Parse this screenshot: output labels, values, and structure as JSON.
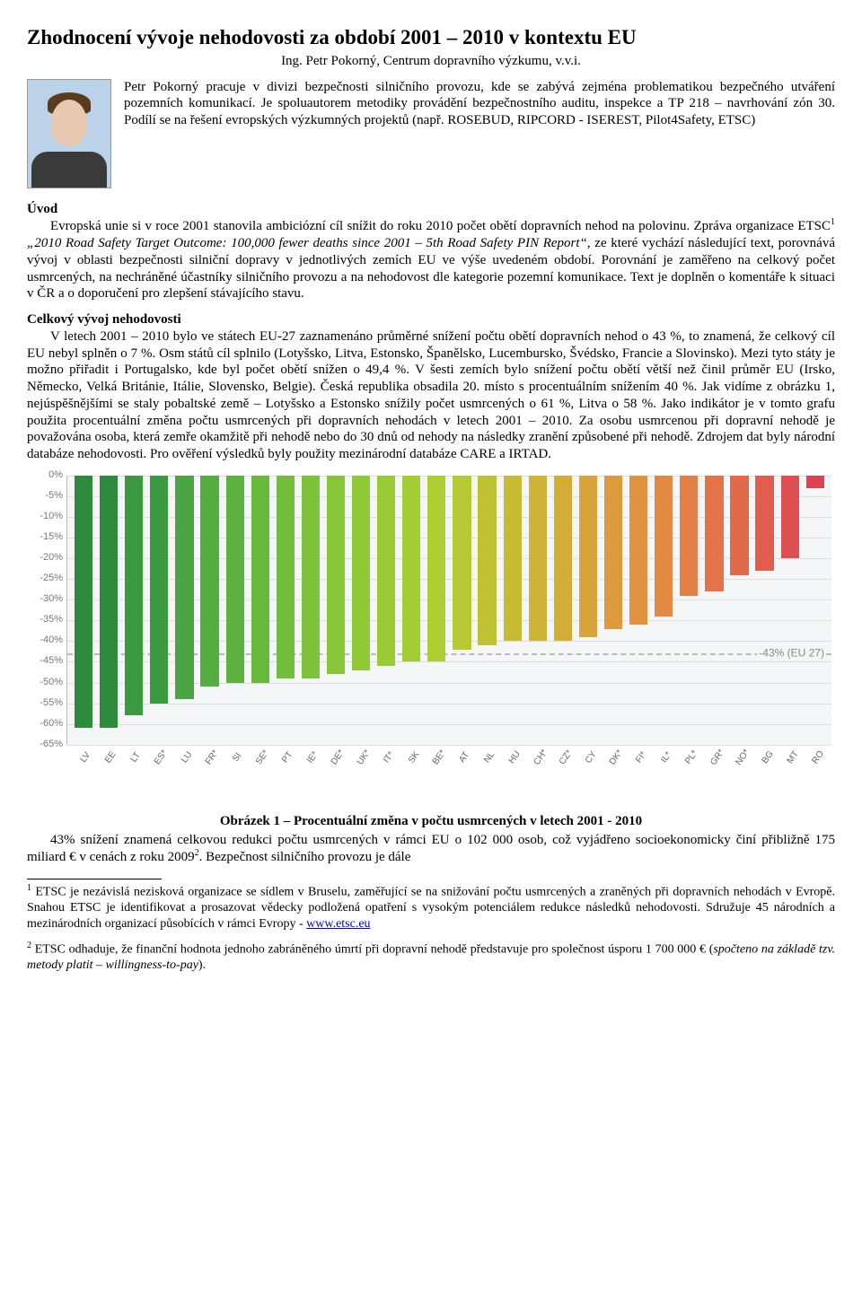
{
  "title": "Zhodnocení vývoje nehodovosti za období 2001 – 2010 v kontextu EU",
  "subtitle": "Ing. Petr Pokorný, Centrum dopravního výzkumu, v.v.i.",
  "bio": "Petr Pokorný pracuje v divizi bezpečnosti silničního provozu, kde se zabývá zejména problematikou bezpečného utváření pozemních komunikací. Je spoluautorem metodiky provádění bezpečnostního auditu, inspekce a TP 218 – navrhování zón 30. Podílí se na řešení evropských výzkumných projektů (např. ROSEBUD, RIPCORD - ISEREST, Pilot4Safety, ETSC)",
  "introHeading": "Úvod",
  "introPart1": "Evropská unie si v roce 2001 stanovila ambiciózní cíl snížit do roku 2010 počet obětí dopravních nehod na polovinu. Zpráva organizace ETSC",
  "introSup1": "1",
  "introItalic": " „2010 Road Safety Target Outcome: 100,000 fewer deaths since 2001 – 5th Road Safety PIN Report“",
  "introPart2": ", ze které vychází následující text, porovnává vývoj v oblasti bezpečnosti silniční dopravy v jednotlivých zemích EU ve výše uvedeném období. Porovnání je zaměřeno na celkový počet usmrcených, na nechráněné účastníky silničního provozu a na nehodovost dle kategorie pozemní komunikace. Text je doplněn o komentáře k situaci v ČR a o doporučení pro zlepšení stávajícího stavu.",
  "sec2Heading": "Celkový vývoj nehodovosti",
  "sec2Body": "V letech 2001 – 2010 bylo ve státech EU-27 zaznamenáno průměrné snížení počtu obětí dopravních nehod o 43 %, to znamená, že celkový cíl EU nebyl splněn o 7 %. Osm států cíl splnilo (Lotyšsko, Litva, Estonsko, Španělsko, Lucembursko, Švédsko, Francie a Slovinsko). Mezi tyto státy je možno přiřadit i Portugalsko, kde byl počet obětí snížen o 49,4 %. V šesti zemích bylo snížení počtu obětí větší než činil průměr EU (Irsko, Německo, Velká Británie, Itálie, Slovensko, Belgie). Česká republika obsadila 20. místo s procentuálním snížením 40 %. Jak vidíme z obrázku 1, nejúspěšnějšími se staly pobaltské země – Lotyšsko a Estonsko snížily počet usmrcených o 61 %, Litva o 58 %. Jako indikátor je v tomto grafu použita procentuální změna počtu usmrcených při dopravních nehodách v letech 2001 – 2010. Za osobu usmrcenou při dopravní nehodě je považována osoba, která zemře okamžitě při nehodě nebo do 30 dnů od nehody na následky zranění způsobené při nehodě. Zdrojem dat byly národní databáze nehodovosti. Pro ověření výsledků byly použity mezinárodní databáze CARE a IRTAD.",
  "chart": {
    "type": "bar",
    "ylim": [
      -65,
      0
    ],
    "ytick_step": 5,
    "ytick_suffix": "%",
    "background": "#f5f6f7",
    "grid_color": "#dddddd",
    "ref_line": {
      "value": -43,
      "label": "-43% (EU 27)",
      "color": "#bbbbbb"
    },
    "bar_width": 0.72,
    "label_fontsize": 11,
    "bars": [
      {
        "label": "LV",
        "value": -61,
        "color": "#2e8b3d"
      },
      {
        "label": "EE",
        "value": -61,
        "color": "#2e8b3d"
      },
      {
        "label": "LT",
        "value": -58,
        "color": "#3b9a41"
      },
      {
        "label": "ES*",
        "value": -55,
        "color": "#3b9a41"
      },
      {
        "label": "LU",
        "value": -54,
        "color": "#4aa542"
      },
      {
        "label": "FR*",
        "value": -51,
        "color": "#55ad41"
      },
      {
        "label": "SI",
        "value": -50,
        "color": "#5eb340"
      },
      {
        "label": "SE*",
        "value": -50,
        "color": "#68b93e"
      },
      {
        "label": "PT",
        "value": -49,
        "color": "#72be3c"
      },
      {
        "label": "IE*",
        "value": -49,
        "color": "#7cc23a"
      },
      {
        "label": "DE*",
        "value": -48,
        "color": "#86c638"
      },
      {
        "label": "UK*",
        "value": -47,
        "color": "#90c936"
      },
      {
        "label": "IT*",
        "value": -46,
        "color": "#9acb34"
      },
      {
        "label": "SK",
        "value": -45,
        "color": "#a4cd33"
      },
      {
        "label": "BE*",
        "value": -45,
        "color": "#adce33"
      },
      {
        "label": "AT",
        "value": -42,
        "color": "#b6c833"
      },
      {
        "label": "NL",
        "value": -41,
        "color": "#bfc233"
      },
      {
        "label": "HU",
        "value": -40,
        "color": "#c7bb34"
      },
      {
        "label": "CH*",
        "value": -40,
        "color": "#ceb436"
      },
      {
        "label": "CZ*",
        "value": -40,
        "color": "#d4ac38"
      },
      {
        "label": "CY",
        "value": -39,
        "color": "#d9a43a"
      },
      {
        "label": "DK*",
        "value": -37,
        "color": "#dd9b3d"
      },
      {
        "label": "FI*",
        "value": -36,
        "color": "#e0923f"
      },
      {
        "label": "IL*",
        "value": -34,
        "color": "#e28942"
      },
      {
        "label": "PL*",
        "value": -29,
        "color": "#e47f45"
      },
      {
        "label": "GR*",
        "value": -28,
        "color": "#e47448"
      },
      {
        "label": "NO*",
        "value": -24,
        "color": "#e3694b"
      },
      {
        "label": "BG",
        "value": -23,
        "color": "#e15d4e"
      },
      {
        "label": "MT",
        "value": -20,
        "color": "#de5051"
      },
      {
        "label": "RO",
        "value": -3,
        "color": "#da4352"
      }
    ]
  },
  "caption": "Obrázek 1 – Procentuální změna v počtu usmrcených v letech 2001 - 2010",
  "afterChart1": "43% snížení znamená celkovou redukci počtu usmrcených v rámci EU o 102 000 osob, což vyjádřeno socioekonomicky činí přibližně 175 miliard € v cenách z roku 2009",
  "afterChartSup": "2",
  "afterChart2": ". Bezpečnost silničního provozu je dále",
  "footnote1a": "ETSC je nezávislá nezisková organizace se sídlem v Bruselu, zaměřující se na snižování počtu usmrcených a zraněných při dopravních nehodách v Evropě. Snahou ETSC je identifikovat a prosazovat vědecky podložená opatření s vysokým potenciálem redukce následků nehodovosti. Sdružuje 45 národních a mezinárodních organizací působících v rámci Evropy - ",
  "footnote1link": "www.etsc.eu",
  "footnote2a": "ETSC odhaduje, že finanční hodnota jednoho zabráněného úmrtí při dopravní nehodě  představuje pro společnost úsporu 1 700 000 € (",
  "footnote2italic": "spočteno na základě tzv. metody platit – willingness-to-pay",
  "footnote2b": ")."
}
